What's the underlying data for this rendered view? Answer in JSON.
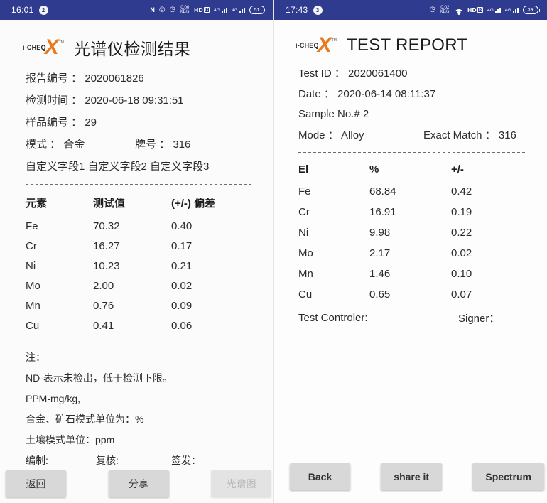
{
  "left": {
    "statusbar": {
      "time": "16:01",
      "notification_count": "2",
      "nfc_label": "N",
      "net_speed_value": "0.00",
      "net_speed_unit": "KB/s",
      "hd_label": "HD",
      "hd_box": "R",
      "sim1_label": "4G",
      "sim2_label": "4G",
      "battery_percent": "51"
    },
    "logo": {
      "brand": "i-CHEQ",
      "x": "X",
      "tm": "TM"
    },
    "title": "光谱仪检测结果",
    "meta": {
      "report_no": "报告编号 ： 2020061826",
      "test_time": "检测时间 ： 2020-06-18 09:31:51",
      "sample_no": "样品编号 ： 29",
      "mode": "模式 ： 合金",
      "grade": "牌号 ： 316",
      "custom_fields": "自定义字段1 自定义字段2 自定义字段3"
    },
    "table": {
      "headers": [
        "元素",
        "测试值",
        "(+/-) 偏差"
      ],
      "rows": [
        {
          "el": "Fe",
          "val": "70.32",
          "dev": "0.40"
        },
        {
          "el": "Cr",
          "val": "16.27",
          "dev": "0.17"
        },
        {
          "el": "Ni",
          "val": "10.23",
          "dev": "0.21"
        },
        {
          "el": "Mo",
          "val": "2.00",
          "dev": "0.02"
        },
        {
          "el": "Mn",
          "val": "0.76",
          "dev": "0.09"
        },
        {
          "el": "Cu",
          "val": "0.41",
          "dev": "0.06"
        }
      ]
    },
    "notes": {
      "title": "注：",
      "line1": "ND-表示未检出，低于检测下限。",
      "line2": "PPM-mg/kg,",
      "line3": "合金、矿石模式单位为：%",
      "line4": "土壤模式单位：ppm"
    },
    "sign": {
      "prepared": "编制:",
      "reviewed": "复核:",
      "issued": "签发："
    },
    "buttons": {
      "back": "返回",
      "share": "分享",
      "spectrum": "光谱图"
    }
  },
  "right": {
    "statusbar": {
      "time": "17:43",
      "notification_count": "3",
      "net_speed_value": "0.02",
      "net_speed_unit": "KB/s",
      "hd_label": "HD",
      "hd_box": "R",
      "sim1_label": "4G",
      "sim2_label": "4G",
      "battery_percent": "39"
    },
    "logo": {
      "brand": "i-CHEQ",
      "x": "X",
      "tm": "TM"
    },
    "title": "TEST REPORT",
    "meta": {
      "test_id": "Test ID ： 2020061400",
      "date": "Date ： 2020-06-14 08:11:37",
      "sample_no": "Sample No.# 2",
      "mode": "Mode ： Alloy",
      "exact_match": "Exact Match ： 316"
    },
    "table": {
      "headers": [
        "El",
        "%",
        "+/-"
      ],
      "rows": [
        {
          "el": "Fe",
          "val": "68.84",
          "dev": "0.42"
        },
        {
          "el": "Cr",
          "val": "16.91",
          "dev": "0.19"
        },
        {
          "el": "Ni",
          "val": "9.98",
          "dev": "0.22"
        },
        {
          "el": "Mo",
          "val": "2.17",
          "dev": "0.02"
        },
        {
          "el": "Mn",
          "val": "1.46",
          "dev": "0.10"
        },
        {
          "el": "Cu",
          "val": "0.65",
          "dev": "0.07"
        }
      ]
    },
    "controller": {
      "test_controller": "Test Controler:",
      "signer": "Signer："
    },
    "buttons": {
      "back": "Back",
      "share": "share it",
      "spectrum": "Spectrum"
    }
  }
}
